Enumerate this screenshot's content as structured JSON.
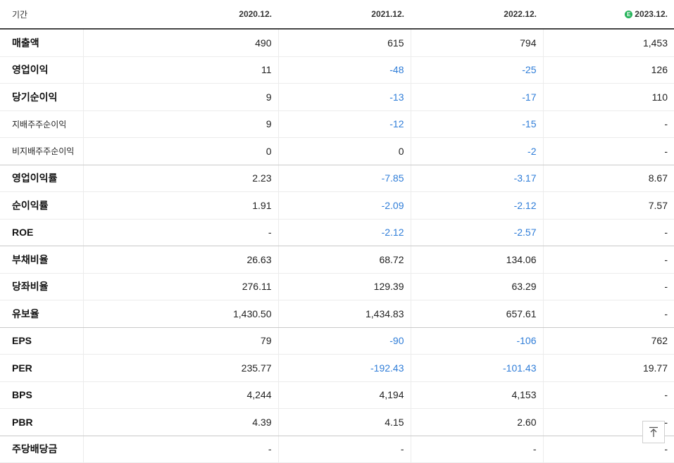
{
  "header": {
    "period_label": "기간",
    "estimate_mark": "E",
    "columns": [
      "2020.12.",
      "2021.12.",
      "2022.12.",
      "2023.12."
    ]
  },
  "rows": [
    {
      "label": "매출액",
      "values": [
        "490",
        "615",
        "794",
        "1,453"
      ]
    },
    {
      "label": "영업이익",
      "values": [
        "11",
        "-48",
        "-25",
        "126"
      ]
    },
    {
      "label": "당기순이익",
      "values": [
        "9",
        "-13",
        "-17",
        "110"
      ]
    },
    {
      "label": "지배주주순이익",
      "values": [
        "9",
        "-12",
        "-15",
        "-"
      ]
    },
    {
      "label": "비지배주주순이익",
      "values": [
        "0",
        "0",
        "-2",
        "-"
      ]
    },
    {
      "label": "영업이익률",
      "values": [
        "2.23",
        "-7.85",
        "-3.17",
        "8.67"
      ]
    },
    {
      "label": "순이익률",
      "values": [
        "1.91",
        "-2.09",
        "-2.12",
        "7.57"
      ]
    },
    {
      "label": "ROE",
      "values": [
        "-",
        "-2.12",
        "-2.57",
        "-"
      ]
    },
    {
      "label": "부채비율",
      "values": [
        "26.63",
        "68.72",
        "134.06",
        "-"
      ]
    },
    {
      "label": "당좌비율",
      "values": [
        "276.11",
        "129.39",
        "63.29",
        "-"
      ]
    },
    {
      "label": "유보율",
      "values": [
        "1,430.50",
        "1,434.83",
        "657.61",
        "-"
      ]
    },
    {
      "label": "EPS",
      "values": [
        "79",
        "-90",
        "-106",
        "762"
      ]
    },
    {
      "label": "PER",
      "values": [
        "235.77",
        "-192.43",
        "-101.43",
        "19.77"
      ]
    },
    {
      "label": "BPS",
      "values": [
        "4,244",
        "4,194",
        "4,153",
        "-"
      ]
    },
    {
      "label": "PBR",
      "values": [
        "4.39",
        "4.15",
        "2.60",
        "-"
      ]
    },
    {
      "label": "주당배당금",
      "values": [
        "-",
        "-",
        "-",
        "-"
      ]
    }
  ],
  "colors": {
    "negative": "#2f7dd8",
    "estimate_badge": "#25b35a"
  }
}
